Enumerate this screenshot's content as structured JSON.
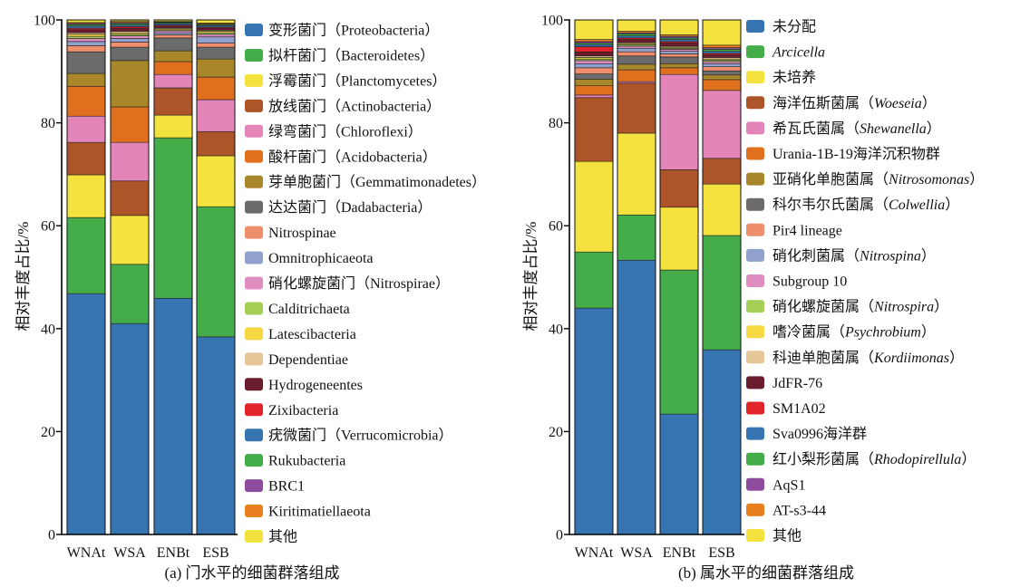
{
  "chart_data": [
    {
      "type": "bar",
      "stacked": true,
      "caption": "(a) 门水平的细菌群落组成",
      "ylabel": "相对丰度占比/%",
      "ylim": [
        0,
        100
      ],
      "yticks": [
        0,
        20,
        40,
        60,
        80,
        100
      ],
      "categories": [
        "WNAt",
        "WSA",
        "ENBt",
        "ESB"
      ],
      "grid": false,
      "legend": "right",
      "series": [
        {
          "name": "变形菌门（Proteobacteria）",
          "color": "#3774b2",
          "values": [
            46.8,
            41.0,
            45.9,
            38.4
          ]
        },
        {
          "name": "拟杆菌门（Bacteroidetes）",
          "color": "#44ad4a",
          "values": [
            14.8,
            11.5,
            31.2,
            25.3
          ]
        },
        {
          "name": "浮霉菌门（Planctomycetes）",
          "color": "#f4e33e",
          "values": [
            8.3,
            9.5,
            4.4,
            9.9
          ]
        },
        {
          "name": "放线菌门（Actinobacteria）",
          "color": "#ad5428",
          "values": [
            6.3,
            6.7,
            5.3,
            4.7
          ]
        },
        {
          "name": "绿弯菌门（Chloroflexi）",
          "color": "#e385b8",
          "values": [
            5.1,
            7.5,
            2.6,
            6.2
          ]
        },
        {
          "name": "酸杆菌门（Acidobacteria）",
          "color": "#e0701e",
          "values": [
            5.8,
            6.9,
            2.5,
            4.4
          ]
        },
        {
          "name": "芽单胞菌门（Gemmatimonadetes）",
          "color": "#a8872b",
          "values": [
            2.5,
            9.0,
            2.1,
            3.5
          ]
        },
        {
          "name": "达达菌门（Dadabacteria）",
          "color": "#6b6b6b",
          "values": [
            4.2,
            2.6,
            2.5,
            2.3
          ]
        },
        {
          "name": "Nitrospinae",
          "color": "#ee8e6b",
          "values": [
            1.2,
            1.0,
            0.6,
            0.8
          ]
        },
        {
          "name": "Omnitrophicaeota",
          "color": "#8fa1cc",
          "values": [
            0.8,
            0.7,
            0.4,
            1.2
          ]
        },
        {
          "name": "硝化螺旋菌门（Nitrospirae）",
          "color": "#df8cc0",
          "values": [
            0.6,
            0.5,
            0.4,
            0.5
          ]
        },
        {
          "name": "Calditrichaeta",
          "color": "#a5cf57",
          "values": [
            0.4,
            0.3,
            0.2,
            0.3
          ]
        },
        {
          "name": "Latescibacteria",
          "color": "#f6d843",
          "values": [
            0.4,
            0.3,
            0.2,
            0.3
          ]
        },
        {
          "name": "Dependentiae",
          "color": "#e6c597",
          "values": [
            0.3,
            0.3,
            0.2,
            0.2
          ]
        },
        {
          "name": "Hydrogeneentes",
          "color": "#6a1b2c",
          "values": [
            0.6,
            0.6,
            0.3,
            0.4
          ]
        },
        {
          "name": "Zixibacteria",
          "color": "#e1252a",
          "values": [
            0.3,
            0.3,
            0.2,
            0.2
          ]
        },
        {
          "name": "疣微菌门（Verrucomicrobia）",
          "color": "#3774b2",
          "values": [
            0.4,
            0.3,
            0.3,
            0.3
          ]
        },
        {
          "name": "Rukubacteria",
          "color": "#44ad4a",
          "values": [
            0.3,
            0.3,
            0.2,
            0.2
          ]
        },
        {
          "name": "BRC1",
          "color": "#8d4c9e",
          "values": [
            0.2,
            0.2,
            0.1,
            0.1
          ]
        },
        {
          "name": "Kiritimatiellaeota",
          "color": "#e9801f",
          "values": [
            0.2,
            0.2,
            0.1,
            0.2
          ]
        },
        {
          "name": "其他",
          "color": "#f4e33e",
          "values": [
            0.5,
            0.3,
            0.3,
            0.6
          ]
        }
      ]
    },
    {
      "type": "bar",
      "stacked": true,
      "caption": "(b) 属水平的细菌群落组成",
      "ylabel": "相对丰度占比/%",
      "ylim": [
        0,
        100
      ],
      "yticks": [
        0,
        20,
        40,
        60,
        80,
        100
      ],
      "categories": [
        "WNAt",
        "WSA",
        "ENBt",
        "ESB"
      ],
      "grid": false,
      "legend": "right",
      "series": [
        {
          "name": "未分配",
          "color": "#3774b2",
          "values": [
            44.0,
            53.3,
            23.4,
            35.9
          ]
        },
        {
          "name": "Arcicella",
          "italic": "Arcicella",
          "color": "#44ad4a",
          "values": [
            10.9,
            8.8,
            28.0,
            22.2
          ]
        },
        {
          "name": "未培养",
          "color": "#f4e33e",
          "values": [
            17.6,
            15.9,
            12.2,
            10.0
          ]
        },
        {
          "name": "海洋伍斯菌属（Woeseia）",
          "italic": "Woeseia",
          "color": "#ad5428",
          "values": [
            12.4,
            9.7,
            7.3,
            5.0
          ]
        },
        {
          "name": "希瓦氏菌属（Shewanella）",
          "italic": "Shewanella",
          "color": "#e385b8",
          "values": [
            0.5,
            0.3,
            18.5,
            13.2
          ]
        },
        {
          "name": "Urania-1B-19海洋沉积物群",
          "color": "#e0701e",
          "values": [
            1.8,
            2.3,
            1.3,
            2.1
          ]
        },
        {
          "name": "亚硝化单胞菌属（Nitrosomonas）",
          "italic": "Nitrosomonas",
          "color": "#a8872b",
          "values": [
            1.3,
            1.1,
            0.8,
            0.9
          ]
        },
        {
          "name": "科尔韦尔氏菌属（Colwellia）",
          "italic": "Colwellia",
          "color": "#6b6b6b",
          "values": [
            1.0,
            1.6,
            1.3,
            0.8
          ]
        },
        {
          "name": "Pir4 lineage",
          "color": "#ee8e6b",
          "values": [
            1.2,
            0.8,
            0.6,
            0.8
          ]
        },
        {
          "name": "硝化刺菌属（Nitrospina）",
          "italic": "Nitrospina",
          "color": "#8fa1cc",
          "values": [
            0.8,
            0.7,
            0.5,
            0.6
          ]
        },
        {
          "name": "Subgroup 10",
          "color": "#df8cc0",
          "values": [
            0.6,
            0.4,
            0.4,
            0.4
          ]
        },
        {
          "name": "硝化螺旋菌属（Nitrospira）",
          "italic": "Nitrospira",
          "color": "#a5cf57",
          "values": [
            0.3,
            0.3,
            0.2,
            0.3
          ]
        },
        {
          "name": "嗜冷菌属（Psychrobium）",
          "italic": "Psychrobium",
          "color": "#f6d843",
          "values": [
            0.3,
            0.2,
            0.2,
            0.2
          ]
        },
        {
          "name": "科迪单胞菌属（Kordiimonas）",
          "italic": "Kordiimonas",
          "color": "#e6c597",
          "values": [
            0.3,
            0.2,
            0.2,
            0.3
          ]
        },
        {
          "name": "JdFR-76",
          "color": "#6a1b2c",
          "values": [
            0.8,
            0.6,
            0.6,
            0.5
          ]
        },
        {
          "name": "SM1A02",
          "color": "#e1252a",
          "values": [
            1.0,
            0.3,
            0.3,
            0.3
          ]
        },
        {
          "name": "Sva0996海洋群",
          "color": "#3774b2",
          "values": [
            0.4,
            0.4,
            0.4,
            0.4
          ]
        },
        {
          "name": "红小梨形菌属（Rhodopirellula）",
          "italic": "Rhodopirellula",
          "color": "#44ad4a",
          "values": [
            0.3,
            0.4,
            0.3,
            0.4
          ]
        },
        {
          "name": "AqS1",
          "color": "#8d4c9e",
          "values": [
            0.3,
            0.2,
            0.3,
            0.3
          ]
        },
        {
          "name": "AT-s3-44",
          "color": "#e9801f",
          "values": [
            0.4,
            0.3,
            0.3,
            0.5
          ]
        },
        {
          "name": "其他",
          "color": "#f4e33e",
          "values": [
            3.8,
            2.2,
            2.9,
            4.9
          ]
        }
      ]
    }
  ]
}
